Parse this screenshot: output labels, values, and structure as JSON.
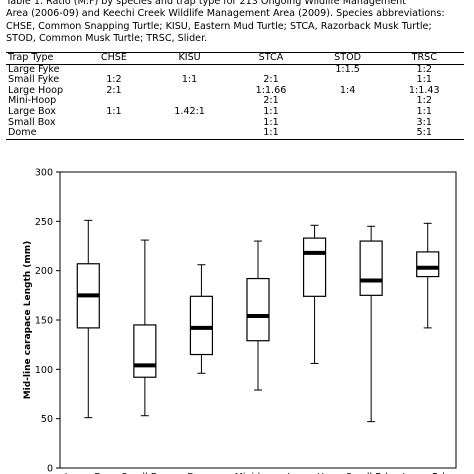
{
  "caption": {
    "lines": [
      "Table 1. Ratio (M:F) by species and trap type for 213 Ongoing Wildlife Management",
      "Area (2006-09) and Keechi Creek Wildlife Management Area (2009). Species abbreviations:",
      "CHSE, Common Snapping Turtle; KISU, Eastern Mud Turtle; STCA, Razorback Musk Turtle;",
      "STOD, Common Musk Turtle; TRSC, Slider."
    ]
  },
  "table": {
    "headers": [
      "Trap Type",
      "CHSE",
      "KISU",
      "STCA",
      "STOD",
      "TRSC"
    ],
    "rows": [
      [
        "Large Fyke",
        "",
        "",
        "",
        "1:1.5",
        "1:2"
      ],
      [
        "Small Fyke",
        "1:2",
        "1:1",
        "2:1",
        "",
        "1:1"
      ],
      [
        "Large Hoop",
        "2:1",
        "",
        "1:1.66",
        "1:4",
        "1:1.43"
      ],
      [
        "Mini-Hoop",
        "",
        "",
        "2:1",
        "",
        "1:2"
      ],
      [
        "Large Box",
        "1:1",
        "1.42:1",
        "1:1",
        "",
        "1:1"
      ],
      [
        "Small Box",
        "",
        "",
        "1:1",
        "",
        "3:1"
      ],
      [
        "Dome",
        "",
        "",
        "1:1",
        "",
        "5:1"
      ]
    ]
  },
  "chart_data": {
    "type": "box",
    "ylabel": "Mid-line carapace Length (mm)",
    "ylim": [
      0,
      300
    ],
    "yticks": [
      0,
      50,
      100,
      150,
      200,
      250,
      300
    ],
    "categories": [
      "Large Box",
      "Small Box",
      "Dome",
      "Mini-hoop",
      "Large Hoop",
      "Small Fyke",
      "Large Fyke"
    ],
    "boxes": [
      {
        "category": "Large Box",
        "min": 51,
        "q1": 142,
        "median": 175,
        "q3": 207,
        "max": 251
      },
      {
        "category": "Small Box",
        "min": 53,
        "q1": 92,
        "median": 104,
        "q3": 145,
        "max": 231
      },
      {
        "category": "Dome",
        "min": 96,
        "q1": 115,
        "median": 142,
        "q3": 174,
        "max": 206
      },
      {
        "category": "Mini-hoop",
        "min": 79,
        "q1": 129,
        "median": 154,
        "q3": 192,
        "max": 230
      },
      {
        "category": "Large Hoop",
        "min": 106,
        "q1": 174,
        "median": 218,
        "q3": 233,
        "max": 246
      },
      {
        "category": "Small Fyke",
        "min": 47,
        "q1": 175,
        "median": 190,
        "q3": 230,
        "max": 245
      },
      {
        "category": "Large Fyke",
        "min": 142,
        "q1": 194,
        "median": 203,
        "q3": 219,
        "max": 248
      }
    ],
    "grid": false,
    "colors": {
      "box_stroke": "#000000",
      "box_fill": "#ffffff",
      "median": "#000000"
    }
  }
}
